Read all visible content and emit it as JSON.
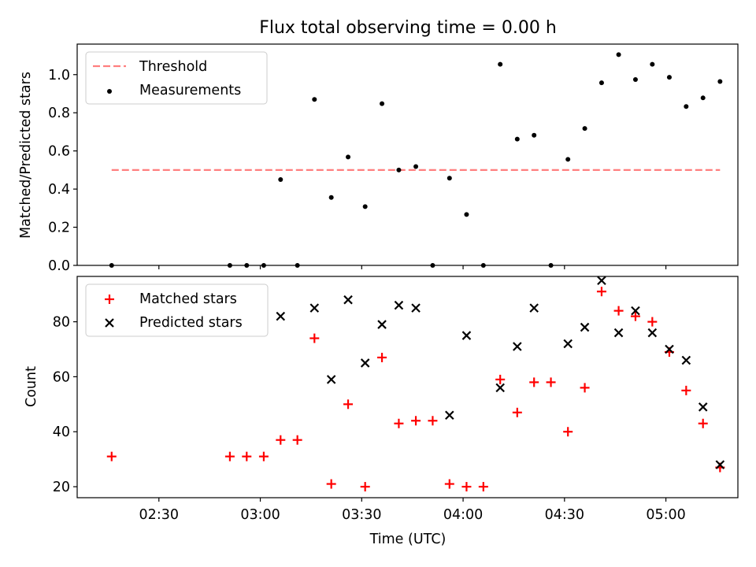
{
  "chart_data": [
    {
      "type": "scatter",
      "title": "Flux total observing time = 0.00 h",
      "xlabel": "",
      "ylabel": "Matched/Predicted stars",
      "xlim": [
        2.097,
        5.355
      ],
      "ylim": [
        0,
        1.16
      ],
      "x_ticks": [
        {
          "value": 2.5,
          "label": ""
        },
        {
          "value": 3.0,
          "label": ""
        },
        {
          "value": 3.5,
          "label": ""
        },
        {
          "value": 4.0,
          "label": ""
        },
        {
          "value": 4.5,
          "label": ""
        },
        {
          "value": 5.0,
          "label": ""
        }
      ],
      "y_ticks": [
        {
          "value": 0.0,
          "label": "0.0"
        },
        {
          "value": 0.2,
          "label": "0.2"
        },
        {
          "value": 0.4,
          "label": "0.4"
        },
        {
          "value": 0.6,
          "label": "0.6"
        },
        {
          "value": 0.8,
          "label": "0.8"
        },
        {
          "value": 1.0,
          "label": "1.0"
        }
      ],
      "legend": {
        "position": "top-left",
        "entries": [
          "Threshold",
          "Measurements"
        ]
      },
      "threshold": {
        "name": "Threshold",
        "value": 0.5,
        "x_range": [
          2.267,
          5.267
        ],
        "color": "#ff7f7f"
      },
      "series": [
        {
          "name": "Measurements",
          "color": "#000000",
          "x": [
            2.267,
            2.85,
            2.933,
            3.017,
            3.1,
            3.183,
            3.267,
            3.35,
            3.433,
            3.517,
            3.6,
            3.683,
            3.767,
            3.85,
            3.933,
            4.017,
            4.1,
            4.183,
            4.267,
            4.35,
            4.433,
            4.517,
            4.6,
            4.683,
            4.767,
            4.85,
            4.933,
            5.017,
            5.1,
            5.183,
            5.267
          ],
          "y": [
            0.0,
            0.0,
            0.0,
            0.0,
            0.45,
            0.0,
            0.87,
            0.356,
            0.568,
            0.308,
            0.848,
            0.5,
            0.518,
            0.0,
            0.457,
            0.267,
            0.0,
            1.054,
            0.662,
            0.682,
            0.0,
            0.556,
            0.718,
            0.957,
            1.105,
            0.974,
            1.054,
            0.986,
            0.833,
            0.878,
            0.964
          ]
        }
      ]
    },
    {
      "type": "scatter",
      "title": "",
      "xlabel": "Time (UTC)",
      "ylabel": "Count",
      "xlim": [
        2.097,
        5.355
      ],
      "ylim": [
        16,
        96.5
      ],
      "x_ticks": [
        {
          "value": 2.5,
          "label": "02:30"
        },
        {
          "value": 3.0,
          "label": "03:00"
        },
        {
          "value": 3.5,
          "label": "03:30"
        },
        {
          "value": 4.0,
          "label": "04:00"
        },
        {
          "value": 4.5,
          "label": "04:30"
        },
        {
          "value": 5.0,
          "label": "05:00"
        }
      ],
      "y_ticks": [
        {
          "value": 20,
          "label": "20"
        },
        {
          "value": 40,
          "label": "40"
        },
        {
          "value": 60,
          "label": "60"
        },
        {
          "value": 80,
          "label": "80"
        }
      ],
      "legend": {
        "position": "top-left",
        "entries": [
          "Matched stars",
          "Predicted stars"
        ]
      },
      "series": [
        {
          "name": "Matched stars",
          "color": "#ff0000",
          "marker": "plus",
          "x": [
            2.267,
            2.85,
            2.933,
            3.017,
            3.1,
            3.183,
            3.267,
            3.35,
            3.433,
            3.517,
            3.6,
            3.683,
            3.767,
            3.85,
            3.933,
            4.017,
            4.1,
            4.183,
            4.267,
            4.35,
            4.433,
            4.517,
            4.6,
            4.683,
            4.767,
            4.85,
            4.933,
            5.017,
            5.1,
            5.183,
            5.267
          ],
          "y": [
            31,
            31,
            31,
            31,
            37,
            37,
            74,
            21,
            50,
            20,
            67,
            43,
            44,
            44,
            21,
            20,
            20,
            59,
            47,
            58,
            58,
            40,
            56,
            91,
            84,
            82,
            80,
            69,
            55,
            43,
            27
          ]
        },
        {
          "name": "Predicted stars",
          "color": "#000000",
          "marker": "x",
          "x": [
            3.1,
            3.267,
            3.35,
            3.433,
            3.517,
            3.6,
            3.683,
            3.767,
            3.933,
            4.017,
            4.183,
            4.267,
            4.35,
            4.517,
            4.6,
            4.683,
            4.767,
            4.85,
            4.933,
            5.017,
            5.1,
            5.183,
            5.267
          ],
          "y": [
            82,
            85,
            59,
            88,
            65,
            79,
            86,
            85,
            46,
            75,
            56,
            71,
            85,
            72,
            78,
            95,
            76,
            84,
            76,
            70,
            66,
            49,
            28
          ]
        }
      ]
    }
  ]
}
